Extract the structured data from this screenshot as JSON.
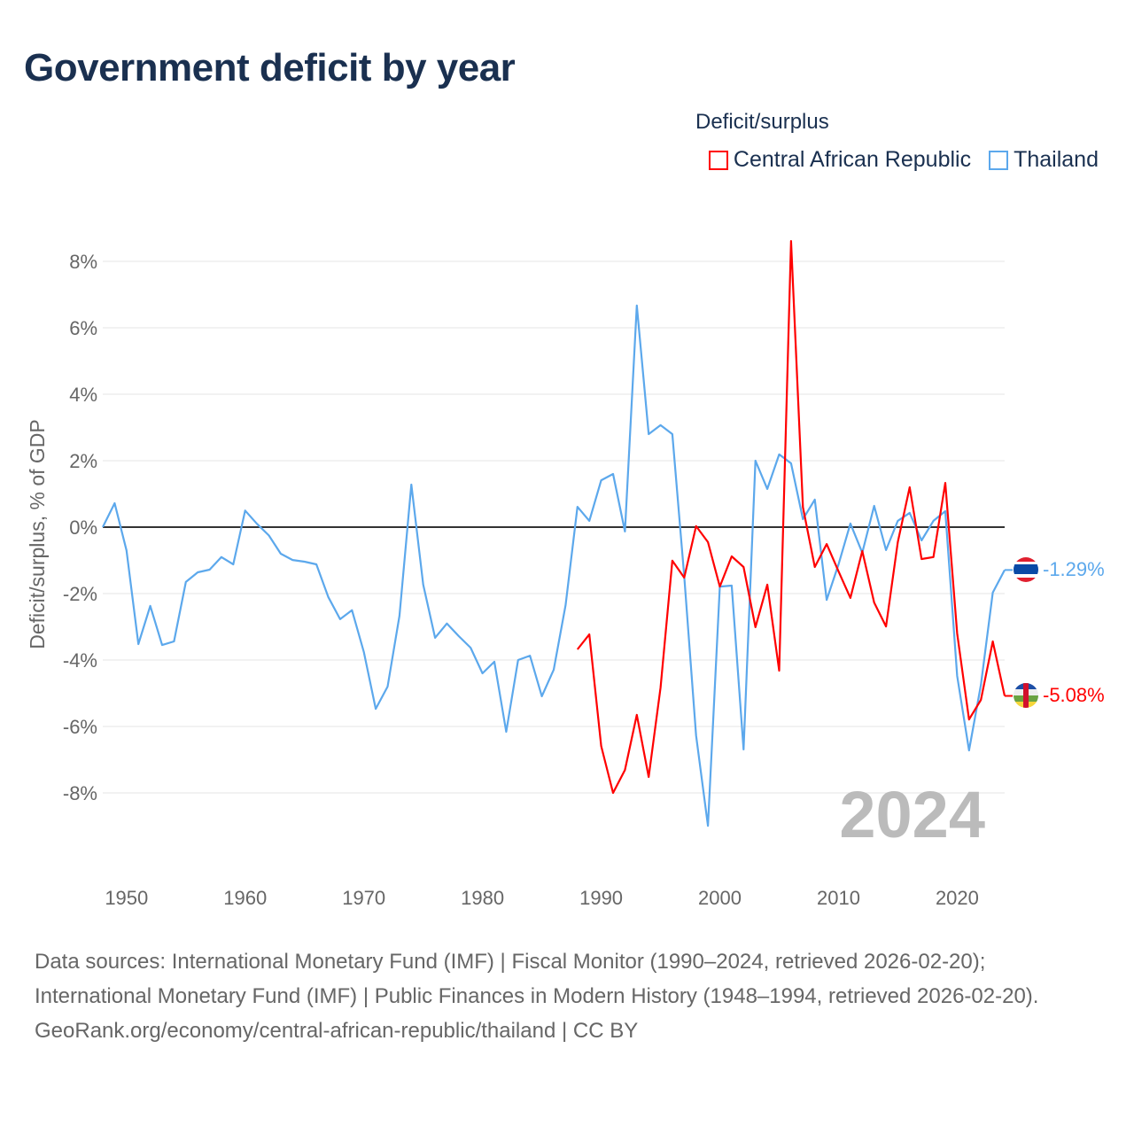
{
  "title": "Government deficit by year",
  "legend": {
    "title": "Deficit/surplus",
    "items": [
      {
        "label": "Central African Republic",
        "color": "#ff0000"
      },
      {
        "label": "Thailand",
        "color": "#5ca8ec"
      }
    ]
  },
  "year_watermark": "2024",
  "footer": {
    "sources": "Data sources: International Monetary Fund (IMF) | Fiscal Monitor (1990–2024, retrieved 2026-02-20); International Monetary Fund (IMF) | Public Finances in Modern History (1948–1994, retrieved 2026-02-20).",
    "credit": "GeoRank.org/economy/central-african-republic/thailand | CC BY"
  },
  "chart_data": {
    "type": "line",
    "title": "Government deficit by year",
    "xlabel": "",
    "ylabel": "Deficit/surplus, % of GDP",
    "xlim": [
      1948,
      2024
    ],
    "ylim": [
      -10,
      9
    ],
    "xticks": [
      1950,
      1960,
      1970,
      1980,
      1990,
      2000,
      2010,
      2020
    ],
    "xtick_labels": [
      "1950",
      "1960",
      "1970",
      "1980",
      "1990",
      "2000",
      "2010",
      "2020"
    ],
    "yticks": [
      8,
      6,
      4,
      2,
      0,
      -2,
      -4,
      -6,
      -8
    ],
    "ytick_labels": [
      "8%",
      "6%",
      "4%",
      "2%",
      "0%",
      "-2%",
      "-4%",
      "-6%",
      "-8%"
    ],
    "grid": true,
    "legend_position": "top-right",
    "series": [
      {
        "name": "Central African Republic",
        "color": "#ff0000",
        "end_label": "-5.08%",
        "flag": "central-african-republic",
        "start_year": 1988,
        "values": [
          -3.68,
          -3.23,
          -6.59,
          -8.0,
          -7.31,
          -5.65,
          -7.52,
          -4.83,
          -1.01,
          -1.52,
          0.03,
          -0.45,
          -1.79,
          -0.88,
          -1.2,
          -3.01,
          -1.73,
          -4.32,
          8.61,
          0.6,
          -1.2,
          -0.51,
          -1.33,
          -2.13,
          -0.72,
          -2.27,
          -2.99,
          -0.45,
          1.2,
          -0.96,
          -0.9,
          1.33,
          -3.2,
          -5.79,
          -5.2,
          -3.44,
          -5.08
        ]
      },
      {
        "name": "Thailand",
        "color": "#5ca8ec",
        "end_label": "-1.29%",
        "flag": "thailand",
        "start_year": 1948,
        "values": [
          0.0,
          0.72,
          -0.7,
          -3.52,
          -2.37,
          -3.55,
          -3.44,
          -1.65,
          -1.36,
          -1.28,
          -0.9,
          -1.12,
          0.5,
          0.1,
          -0.25,
          -0.8,
          -0.99,
          -1.04,
          -1.12,
          -2.1,
          -2.77,
          -2.5,
          -3.76,
          -5.47,
          -4.8,
          -2.67,
          1.28,
          -1.73,
          -3.33,
          -2.9,
          -3.28,
          -3.63,
          -4.4,
          -4.05,
          -6.16,
          -4.0,
          -3.87,
          -5.09,
          -4.29,
          -2.35,
          0.61,
          0.19,
          1.41,
          1.6,
          -0.13,
          6.67,
          2.8,
          3.07,
          2.8,
          -1.47,
          -6.27,
          -8.99,
          -1.79,
          -1.76,
          -6.69,
          2.0,
          1.15,
          2.19,
          1.92,
          0.24,
          0.83,
          -2.19,
          -1.12,
          0.11,
          -0.77,
          0.64,
          -0.69,
          0.19,
          0.43,
          -0.4,
          0.19,
          0.48,
          -4.48,
          -6.72,
          -4.75,
          -1.97,
          -1.29
        ]
      }
    ]
  }
}
